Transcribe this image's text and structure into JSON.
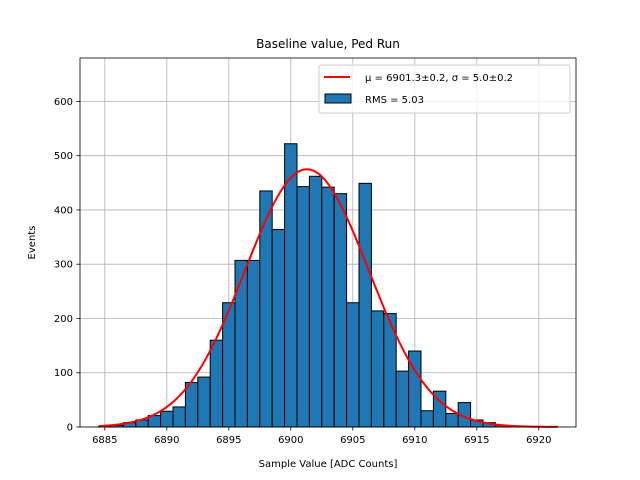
{
  "chart_data": {
    "type": "bar",
    "title": "Baseline value, Ped Run",
    "xlabel": "Sample Value [ADC Counts]",
    "ylabel": "Events",
    "xlim": [
      6883,
      6923
    ],
    "ylim": [
      0,
      680
    ],
    "xticks": [
      6885,
      6890,
      6895,
      6900,
      6905,
      6910,
      6915,
      6920
    ],
    "yticks": [
      0,
      100,
      200,
      300,
      400,
      500,
      600
    ],
    "grid": true,
    "legend_position": "top-right",
    "histogram": {
      "name": "RMS = 5.03",
      "color": "#1f77b4",
      "bin_edges": [
        6884.5,
        6885.5,
        6886.5,
        6887.5,
        6888.5,
        6889.5,
        6890.5,
        6891.5,
        6892.5,
        6893.5,
        6894.5,
        6895.5,
        6896.5,
        6897.5,
        6898.5,
        6899.5,
        6900.5,
        6901.5,
        6902.5,
        6903.5,
        6904.5,
        6905.5,
        6906.5,
        6907.5,
        6908.5,
        6909.5,
        6910.5,
        6911.5,
        6912.5,
        6913.5,
        6914.5,
        6915.5,
        6916.5,
        6917.5,
        6918.5,
        6919.5,
        6920.5,
        6921.5
      ],
      "counts": [
        1,
        3,
        8,
        13,
        21,
        29,
        37,
        82,
        92,
        160,
        229,
        307,
        307,
        435,
        364,
        522,
        443,
        462,
        442,
        430,
        229,
        449,
        214,
        209,
        103,
        140,
        30,
        66,
        25,
        45,
        13,
        8,
        3,
        2,
        1,
        1,
        1
      ]
    },
    "fit": {
      "name": "$\\mu=6901.3\\pm0.2$, $\\sigma=5.0\\pm0.2$",
      "color": "#ff0000",
      "mu": 6901.3,
      "sigma": 5.0,
      "amplitude": 475,
      "x_range": [
        6884.5,
        6921.5
      ]
    },
    "legend": [
      {
        "label_pre": "μ = 6901.3±0.2, ",
        "label_post": "σ = 5.0±0.2",
        "kind": "line",
        "color": "#ff0000"
      },
      {
        "label": "RMS = 5.03",
        "kind": "patch",
        "color": "#1f77b4"
      }
    ]
  }
}
